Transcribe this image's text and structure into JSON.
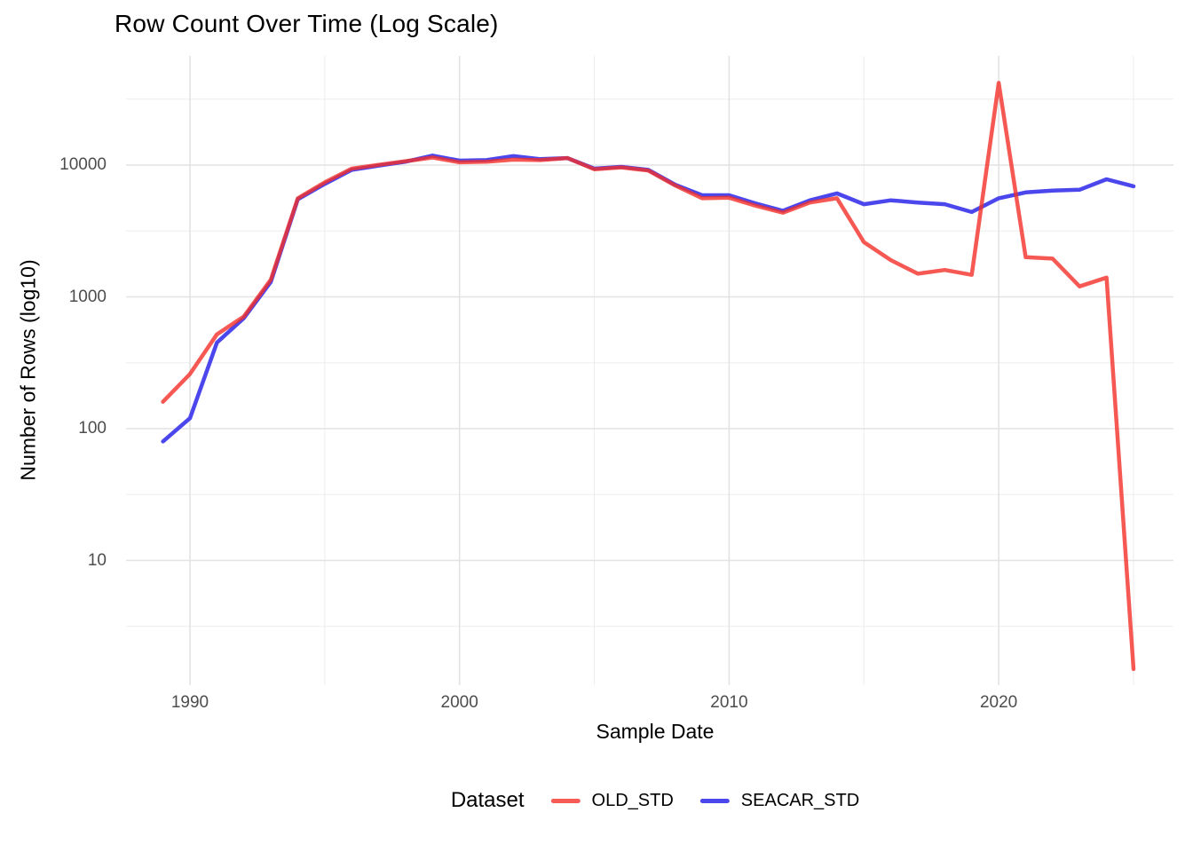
{
  "chart_data": {
    "type": "line",
    "title": "Row Count Over Time (Log Scale)",
    "xlabel": "Sample Date",
    "ylabel": "Number of Rows (log10)",
    "legend_title": "Dataset",
    "legend_position": "bottom",
    "grid": true,
    "x_scale": "linear",
    "y_scale": "log10",
    "x_ticks": [
      1990,
      2000,
      2010,
      2020
    ],
    "x_minor_ticks": [
      1995,
      2005,
      2015,
      2025
    ],
    "y_ticks": [
      10,
      100,
      1000,
      10000
    ],
    "y_minor_ticks": [
      3.1623,
      31.623,
      316.23,
      3162.3,
      31623
    ],
    "x_range": [
      1989,
      2025
    ],
    "y_range_approx": [
      1,
      45000
    ],
    "years": [
      1989,
      1990,
      1991,
      1992,
      1993,
      1994,
      1995,
      1996,
      1997,
      1998,
      1999,
      2000,
      2001,
      2002,
      2003,
      2004,
      2005,
      2006,
      2007,
      2008,
      2009,
      2010,
      2011,
      2012,
      2013,
      2014,
      2015,
      2016,
      2017,
      2018,
      2019,
      2020,
      2021,
      2022,
      2023,
      2024,
      2025
    ],
    "series": [
      {
        "name": "OLD_STD",
        "color": "#F43028",
        "draw_opacity": 0.8,
        "legend_color": "#F75B55",
        "values": [
          160,
          260,
          520,
          710,
          1350,
          5600,
          7400,
          9400,
          10050,
          10700,
          11400,
          10500,
          10600,
          11000,
          10900,
          11300,
          9300,
          9600,
          9100,
          7000,
          5600,
          5650,
          4900,
          4350,
          5200,
          5600,
          2600,
          1900,
          1500,
          1600,
          1470,
          42000,
          2000,
          1950,
          1200,
          1400,
          1.5
        ]
      },
      {
        "name": "SEACAR_STD",
        "color": "#4B47ED",
        "draw_opacity": 1,
        "legend_color": "#4B47ED",
        "values": [
          80,
          120,
          450,
          690,
          1300,
          5500,
          7200,
          9200,
          9900,
          10600,
          11800,
          10800,
          10900,
          11700,
          11100,
          11300,
          9400,
          9700,
          9200,
          7100,
          5900,
          5900,
          5100,
          4500,
          5400,
          6100,
          5050,
          5400,
          5200,
          5050,
          4400,
          5600,
          6200,
          6400,
          6500,
          7800,
          6900
        ]
      }
    ]
  }
}
